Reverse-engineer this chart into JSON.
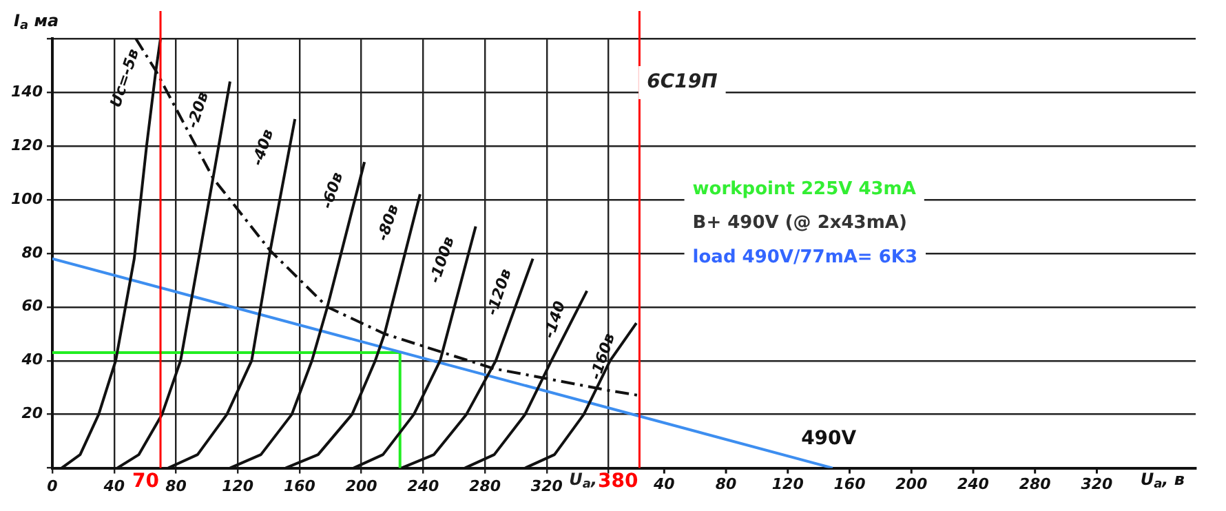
{
  "chart_data": {
    "type": "line",
    "xlabel": "U$_{а}$, в",
    "ylabel": "I$_{а}$ ма",
    "xlim": [
      0,
      740
    ],
    "ylim": [
      0,
      160
    ],
    "xticks": [
      0,
      40,
      80,
      120,
      160,
      200,
      240,
      280,
      320,
      {
        "value": 360,
        "label": null
      }
    ],
    "x2lim": [
      -356,
      384
    ],
    "x2ticks": [
      40,
      80,
      120,
      160,
      200,
      240,
      280,
      320
    ],
    "yticks": [
      {
        "value": 0,
        "label": null
      },
      20,
      40,
      60,
      80,
      100,
      120,
      140,
      {
        "value": 160,
        "label": null
      }
    ],
    "grid": true,
    "legend": false,
    "marker": "none",
    "series": [
      {
        "name": "Uс=-5в",
        "color": "#111111",
        "x": [
          6,
          18,
          30,
          41,
          53,
          61,
          67,
          70
        ],
        "values": [
          0,
          5,
          20,
          40,
          78,
          120,
          148,
          160
        ]
      },
      {
        "name": "-20в",
        "color": "#111111",
        "x": [
          42,
          56,
          71,
          83,
          104,
          115
        ],
        "values": [
          0,
          5,
          20,
          40,
          108,
          144
        ]
      },
      {
        "name": "-40в",
        "color": "#111111",
        "x": [
          75,
          94,
          113,
          129,
          141,
          157
        ],
        "values": [
          0,
          5,
          20,
          40,
          81,
          130
        ]
      },
      {
        "name": "-60в",
        "color": "#111111",
        "x": [
          115,
          135,
          155,
          168,
          178,
          202
        ],
        "values": [
          0,
          5,
          20,
          40,
          60,
          114
        ]
      },
      {
        "name": "-80в",
        "color": "#111111",
        "x": [
          151,
          172,
          194,
          209,
          215,
          238
        ],
        "values": [
          0,
          5,
          20,
          40,
          50,
          102
        ]
      },
      {
        "name": "-100в",
        "color": "#111111",
        "x": [
          195,
          214,
          234,
          251,
          274
        ],
        "values": [
          0,
          5,
          20,
          40,
          90
        ]
      },
      {
        "name": "-120в",
        "color": "#111111",
        "x": [
          226,
          247,
          268,
          287,
          311
        ],
        "values": [
          0,
          5,
          20,
          40,
          78
        ]
      },
      {
        "name": "-140",
        "color": "#111111",
        "x": [
          267,
          286,
          306,
          323,
          346
        ],
        "values": [
          0,
          5,
          20,
          40,
          66
        ]
      },
      {
        "name": "-160в",
        "color": "#111111",
        "x": [
          306,
          325,
          344,
          361,
          378
        ],
        "values": [
          0,
          5,
          20,
          40,
          54
        ]
      },
      {
        "color": "#111111",
        "line_style": "dashed",
        "x": [
          54,
          67,
          104,
          141,
          178,
          215,
          253,
          286,
          323,
          359,
          380
        ],
        "values": [
          160,
          148,
          108,
          81,
          60,
          50,
          43,
          37,
          33,
          29,
          27
        ]
      },
      {
        "color": "#3d8ef0",
        "x": [
          0,
          505
        ],
        "values": [
          78,
          0
        ]
      },
      {
        "color": "#22ee22",
        "x": [
          0,
          225,
          225
        ],
        "values": [
          43,
          43,
          0
        ]
      }
    ],
    "ref_lines": [
      {
        "axis": "x",
        "value": 70,
        "label": "70",
        "color": "#ff0000"
      },
      {
        "axis": "x",
        "value": 380,
        "label": "380",
        "color": "#ff0000"
      }
    ],
    "annotations": [
      "6С19П",
      "U$_{а}$,",
      "workpoint 225V 43mA",
      "B+ 490V (@ 2x43mA)",
      "load 490V/77mA= 6K3",
      {
        "text": "490V",
        "x": 490,
        "y": 0
      }
    ]
  }
}
